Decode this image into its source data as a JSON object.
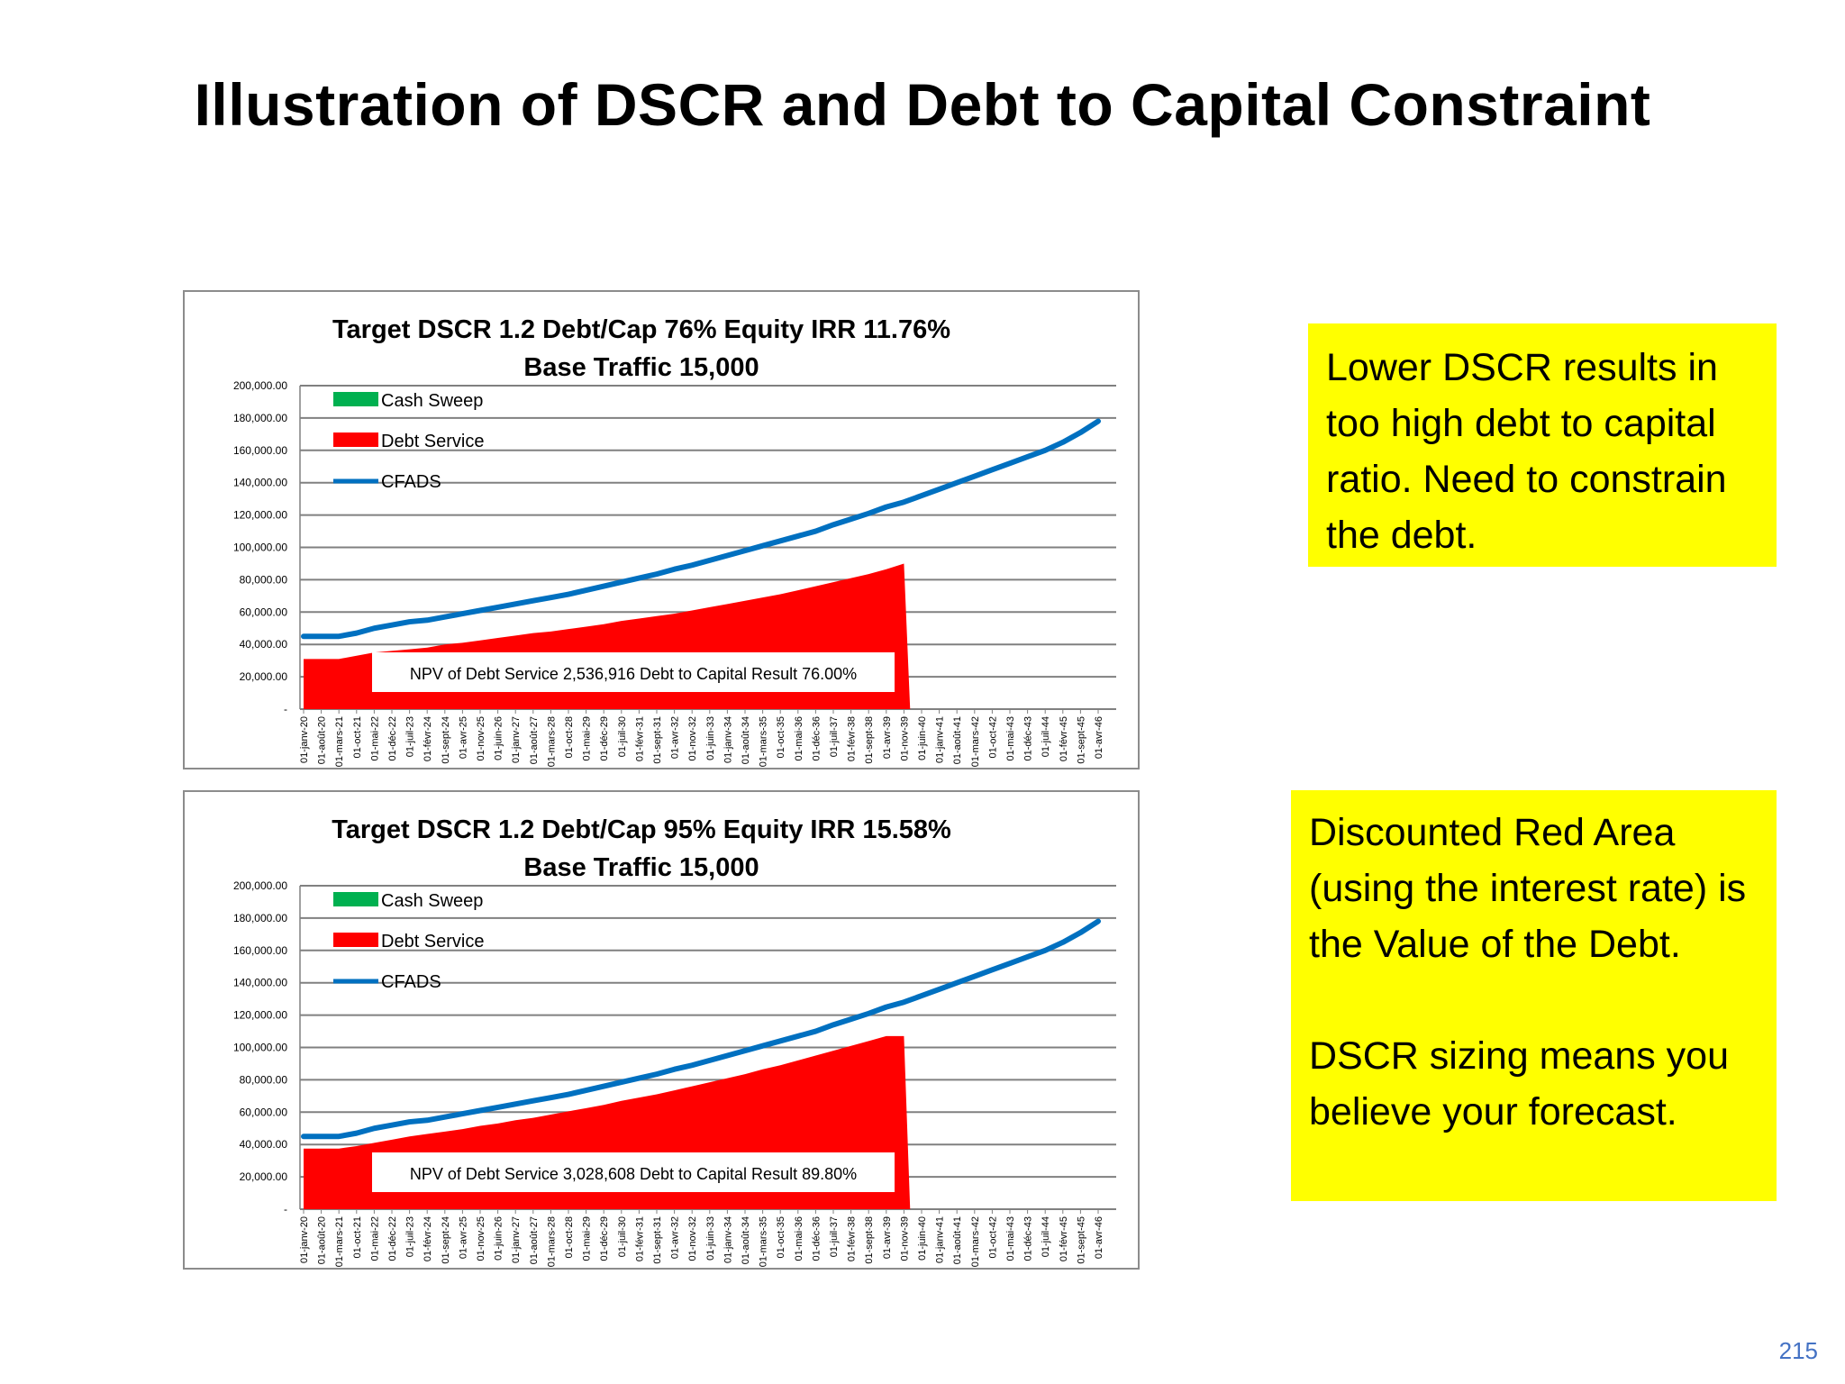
{
  "slide": {
    "title": "Illustration of DSCR and Debt to Capital Constraint",
    "page_number": "215"
  },
  "notes": [
    {
      "text": "Lower DSCR results in too high debt to capital ratio. Need to constrain the debt."
    },
    {
      "text": "Discounted Red Area (using the interest rate) is the Value of the Debt.\n\nDSCR sizing means you believe your forecast."
    }
  ],
  "colors": {
    "cash_sweep": "#00b050",
    "debt_service": "#ff0000",
    "cfads": "#0070c0",
    "gridline": "#808080",
    "note_background": "#ffff00"
  },
  "chart_data": [
    {
      "type": "area",
      "title": "Target DSCR 1.2 Debt/Cap 76% Equity IRR 11.76%",
      "subtitle": "Base Traffic  15,000",
      "ylim": [
        0,
        200000
      ],
      "y_ticks": [
        "-",
        "20,000.00",
        "40,000.00",
        "60,000.00",
        "80,000.00",
        "100,000.00",
        "120,000.00",
        "140,000.00",
        "160,000.00",
        "180,000.00",
        "200,000.00"
      ],
      "x_ticks": [
        "01-janv-20",
        "01-août-20",
        "01-mars-21",
        "01-oct-21",
        "01-mai-22",
        "01-déc-22",
        "01-juil-23",
        "01-févr-24",
        "01-sept-24",
        "01-avr-25",
        "01-nov-25",
        "01-juin-26",
        "01-janv-27",
        "01-août-27",
        "01-mars-28",
        "01-oct-28",
        "01-mai-29",
        "01-déc-29",
        "01-juil-30",
        "01-févr-31",
        "01-sept-31",
        "01-avr-32",
        "01-nov-32",
        "01-juin-33",
        "01-janv-34",
        "01-août-34",
        "01-mars-35",
        "01-oct-35",
        "01-mai-36",
        "01-déc-36",
        "01-juil-37",
        "01-févr-38",
        "01-sept-38",
        "01-avr-39",
        "01-nov-39",
        "01-juin-40",
        "01-janv-41",
        "01-août-41",
        "01-mars-42",
        "01-oct-42",
        "01-mai-43",
        "01-déc-43",
        "01-juil-44",
        "01-févr-45",
        "01-sept-45",
        "01-avr-46"
      ],
      "legend_placement": "top-left",
      "grid": true,
      "series": [
        {
          "name": "Cash Sweep",
          "kind": "area",
          "values": []
        },
        {
          "name": "Debt Service",
          "kind": "area",
          "values": [
            31000,
            31000,
            31000,
            33000,
            35000,
            36000,
            37000,
            38000,
            40000,
            41000,
            42500,
            44000,
            45500,
            47000,
            48000,
            49500,
            51000,
            52500,
            54500,
            56000,
            57500,
            59000,
            61000,
            63000,
            65000,
            67000,
            69000,
            71000,
            73500,
            76000,
            78500,
            81000,
            83500,
            86500,
            90000,
            0,
            0,
            0,
            0,
            0,
            0,
            0,
            0,
            0,
            0,
            0
          ]
        },
        {
          "name": "CFADS",
          "kind": "line",
          "values": [
            45000,
            45000,
            45000,
            47000,
            50000,
            52000,
            54000,
            55000,
            57000,
            59000,
            61000,
            63000,
            65000,
            67000,
            69000,
            71000,
            73500,
            76000,
            78500,
            81000,
            83500,
            86500,
            89000,
            92000,
            95000,
            98000,
            101000,
            104000,
            107000,
            110000,
            114000,
            117500,
            121000,
            125000,
            128000,
            132000,
            136000,
            140000,
            144000,
            148000,
            152000,
            156000,
            160000,
            165000,
            171000,
            178000
          ]
        }
      ],
      "annotation": "NPV of Debt Service 2,536,916  Debt to Capital Result 76.00%"
    },
    {
      "type": "area",
      "title": "Target DSCR 1.2 Debt/Cap 95% Equity IRR 15.58%",
      "subtitle": "Base Traffic  15,000",
      "ylim": [
        0,
        200000
      ],
      "y_ticks": [
        "-",
        "20,000.00",
        "40,000.00",
        "60,000.00",
        "80,000.00",
        "100,000.00",
        "120,000.00",
        "140,000.00",
        "160,000.00",
        "180,000.00",
        "200,000.00"
      ],
      "x_ticks": [
        "01-janv-20",
        "01-août-20",
        "01-mars-21",
        "01-oct-21",
        "01-mai-22",
        "01-déc-22",
        "01-juil-23",
        "01-févr-24",
        "01-sept-24",
        "01-avr-25",
        "01-nov-25",
        "01-juin-26",
        "01-janv-27",
        "01-août-27",
        "01-mars-28",
        "01-oct-28",
        "01-mai-29",
        "01-déc-29",
        "01-juil-30",
        "01-févr-31",
        "01-sept-31",
        "01-avr-32",
        "01-nov-32",
        "01-juin-33",
        "01-janv-34",
        "01-août-34",
        "01-mars-35",
        "01-oct-35",
        "01-mai-36",
        "01-déc-36",
        "01-juil-37",
        "01-févr-38",
        "01-sept-38",
        "01-avr-39",
        "01-nov-39",
        "01-juin-40",
        "01-janv-41",
        "01-août-41",
        "01-mars-42",
        "01-oct-42",
        "01-mai-43",
        "01-déc-43",
        "01-juil-44",
        "01-févr-45",
        "01-sept-45",
        "01-avr-46"
      ],
      "legend_placement": "top-left",
      "grid": true,
      "series": [
        {
          "name": "Cash Sweep",
          "kind": "area",
          "values": []
        },
        {
          "name": "Debt Service",
          "kind": "area",
          "values": [
            37500,
            37500,
            37500,
            39000,
            41000,
            43000,
            45000,
            46500,
            48000,
            49500,
            51500,
            53000,
            55000,
            56500,
            58500,
            60500,
            62500,
            64500,
            67000,
            69000,
            71000,
            73500,
            76000,
            78500,
            81000,
            83500,
            86500,
            89000,
            92000,
            95000,
            98000,
            101000,
            104000,
            107000,
            107000,
            0,
            0,
            0,
            0,
            0,
            0,
            0,
            0,
            0,
            0,
            0
          ]
        },
        {
          "name": "CFADS",
          "kind": "line",
          "values": [
            45000,
            45000,
            45000,
            47000,
            50000,
            52000,
            54000,
            55000,
            57000,
            59000,
            61000,
            63000,
            65000,
            67000,
            69000,
            71000,
            73500,
            76000,
            78500,
            81000,
            83500,
            86500,
            89000,
            92000,
            95000,
            98000,
            101000,
            104000,
            107000,
            110000,
            114000,
            117500,
            121000,
            125000,
            128000,
            132000,
            136000,
            140000,
            144000,
            148000,
            152000,
            156000,
            160000,
            165000,
            171000,
            178000
          ]
        }
      ],
      "annotation": "NPV of Debt Service 3,028,608  Debt to Capital Result 89.80%"
    }
  ]
}
